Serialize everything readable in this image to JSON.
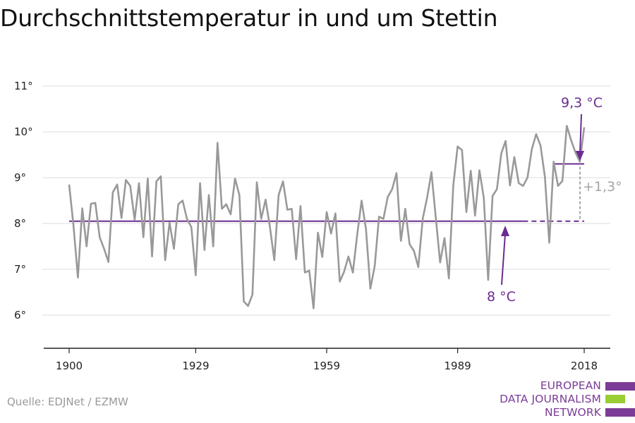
{
  "title": "Durchschnittstemperatur in und um Stettin",
  "source": "Quelle: EDJNet / EZMW",
  "logo": {
    "lines": [
      "EUROPEAN",
      "DATA JOURNALISM",
      "NETWORK"
    ]
  },
  "colors": {
    "series": "#999999",
    "accent": "#6a2c91",
    "delta": "#a6a6a6",
    "logo_purple": "#7b3c97",
    "logo_green": "#9acd32"
  },
  "chart_data": {
    "type": "line",
    "title": "Durchschnittstemperatur in und um Stettin",
    "xlabel": "",
    "ylabel": "",
    "xlim": [
      1900,
      2018
    ],
    "ylim": [
      5.3,
      11.3
    ],
    "y_ticks": [
      6,
      7,
      8,
      9,
      10,
      11
    ],
    "y_tick_labels": [
      "6°",
      "7°",
      "8°",
      "9°",
      "10°",
      "11°"
    ],
    "x_ticks": [
      1900,
      1929,
      1959,
      1989,
      2018
    ],
    "x_tick_labels": [
      "1900",
      "1929",
      "1959",
      "1989",
      "2018"
    ],
    "grid": "horizontal",
    "series": [
      {
        "x": [
          1900,
          1901,
          1902,
          1903,
          1904,
          1905,
          1906,
          1907,
          1908,
          1909,
          1910,
          1911,
          1912,
          1913,
          1914,
          1915,
          1916,
          1917,
          1918,
          1919,
          1920,
          1921,
          1922,
          1923,
          1924,
          1925,
          1926,
          1927,
          1928,
          1929,
          1930,
          1931,
          1932,
          1933,
          1934,
          1935,
          1936,
          1937,
          1938,
          1939,
          1940,
          1941,
          1942,
          1943,
          1944,
          1945,
          1946,
          1947,
          1948,
          1949,
          1950,
          1951,
          1952,
          1953,
          1954,
          1955,
          1956,
          1957,
          1958,
          1959,
          1960,
          1961,
          1962,
          1963,
          1964,
          1965,
          1966,
          1967,
          1968,
          1969,
          1970,
          1971,
          1972,
          1973,
          1974,
          1975,
          1976,
          1977,
          1978,
          1979,
          1980,
          1981,
          1982,
          1983,
          1984,
          1985,
          1986,
          1987,
          1988,
          1989,
          1990,
          1991,
          1992,
          1993,
          1994,
          1995,
          1996,
          1997,
          1998,
          1999,
          2000,
          2001,
          2002,
          2003,
          2004,
          2005,
          2006,
          2007,
          2008,
          2009,
          2010,
          2011,
          2012,
          2013,
          2014,
          2015,
          2016,
          2017,
          2018
        ],
        "values": [
          8.85,
          7.95,
          6.82,
          8.33,
          7.5,
          8.43,
          8.45,
          7.7,
          7.45,
          7.16,
          8.68,
          8.85,
          8.12,
          8.95,
          8.82,
          8.08,
          8.88,
          7.7,
          8.98,
          7.28,
          8.92,
          9.03,
          7.2,
          8.02,
          7.45,
          8.42,
          8.5,
          8.1,
          7.92,
          6.87,
          8.88,
          7.42,
          8.62,
          7.5,
          9.76,
          8.32,
          8.42,
          8.2,
          8.98,
          8.62,
          6.3,
          6.2,
          6.45,
          8.9,
          8.1,
          8.52,
          7.92,
          7.2,
          8.62,
          8.92,
          8.3,
          8.32,
          7.22,
          8.38,
          6.93,
          6.97,
          6.15,
          7.8,
          7.27,
          8.25,
          7.78,
          8.22,
          6.73,
          6.95,
          7.28,
          6.93,
          7.76,
          8.5,
          7.88,
          6.58,
          7.07,
          8.15,
          8.1,
          8.58,
          8.75,
          9.1,
          7.62,
          8.32,
          7.55,
          7.4,
          7.05,
          8.1,
          8.56,
          9.12,
          8.12,
          7.15,
          7.68,
          6.8,
          8.82,
          9.68,
          9.6,
          8.25,
          9.15,
          8.17,
          9.16,
          8.56,
          6.77,
          8.6,
          8.75,
          9.53,
          9.8,
          8.83,
          9.45,
          8.88,
          8.82,
          9.0,
          9.62,
          9.95,
          9.7,
          9.02,
          7.58,
          9.35,
          8.82,
          8.93,
          10.13,
          9.82,
          9.55,
          9.35,
          10.1
        ]
      }
    ],
    "reference_lines": [
      {
        "label": "8 °C",
        "value": 8.05,
        "from": 1900,
        "to": 2018
      },
      {
        "label": "9,3 °C",
        "value": 9.3,
        "from": 2011,
        "to": 2018
      }
    ],
    "delta_annotation": "+1,3°"
  }
}
